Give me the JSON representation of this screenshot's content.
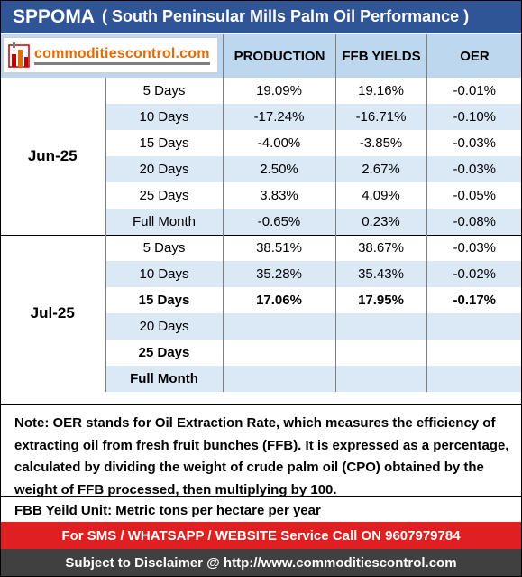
{
  "title": {
    "main": "SPPOMA",
    "sub": "( South Peninsular Mills Palm Oil Performance )"
  },
  "logo": {
    "text": "commoditiescontrol.com",
    "icon": "factory-logo-icon"
  },
  "headers": {
    "production": "PRODUCTION",
    "ffb_yields": "FFB YIELDS",
    "oer": "OER"
  },
  "groups": [
    {
      "month": "Jun-25",
      "rows": [
        {
          "period": "5 Days",
          "production": "19.09%",
          "ffb": "19.16%",
          "oer": "-0.01%",
          "bold": false
        },
        {
          "period": "10 Days",
          "production": "-17.24%",
          "ffb": "-16.71%",
          "oer": "-0.10%",
          "bold": false
        },
        {
          "period": "15 Days",
          "production": "-4.00%",
          "ffb": "-3.85%",
          "oer": "-0.03%",
          "bold": false
        },
        {
          "period": "20 Days",
          "production": "2.50%",
          "ffb": "2.67%",
          "oer": "-0.03%",
          "bold": false
        },
        {
          "period": "25 Days",
          "production": "3.83%",
          "ffb": "4.09%",
          "oer": "-0.05%",
          "bold": false
        },
        {
          "period": "Full Month",
          "production": "-0.65%",
          "ffb": "0.23%",
          "oer": "-0.08%",
          "bold": false
        }
      ]
    },
    {
      "month": "Jul-25",
      "rows": [
        {
          "period": "5 Days",
          "production": "38.51%",
          "ffb": "38.67%",
          "oer": "-0.03%",
          "bold": false
        },
        {
          "period": "10 Days",
          "production": "35.28%",
          "ffb": "35.43%",
          "oer": "-0.02%",
          "bold": false
        },
        {
          "period": "15 Days",
          "production": "17.06%",
          "ffb": "17.95%",
          "oer": "-0.17%",
          "bold": true
        },
        {
          "period": "20 Days",
          "production": "",
          "ffb": "",
          "oer": "",
          "bold": false
        },
        {
          "period": "25 Days",
          "production": "",
          "ffb": "",
          "oer": "",
          "bold": true
        },
        {
          "period": "Full Month",
          "production": "",
          "ffb": "",
          "oer": "",
          "bold": true
        }
      ]
    }
  ],
  "note": "Note: OER stands for Oil Extraction Rate, which measures the efficiency of extracting oil from fresh fruit bunches (FFB). It is expressed as a percentage, calculated by dividing the weight of crude palm oil (CPO) obtained by the weight of FFB processed, then multiplying by 100.",
  "unit_note": "FBB Yeild Unit: Metric tons per hectare per year",
  "sms_bar": "For SMS / WHATSAPP / WEBSITE Service Call  ON  9607979784",
  "disclaimer": "Subject to Disclaimer @  http://www.commoditiescontrol.com",
  "colors": {
    "title_bg": "#2f5597",
    "header_bg": "#bdd7ee",
    "stripe_bg": "#dbe9f7",
    "sms_bg": "#e02020",
    "disclaimer_bg": "#404040",
    "logo_text": "#e36c09"
  }
}
